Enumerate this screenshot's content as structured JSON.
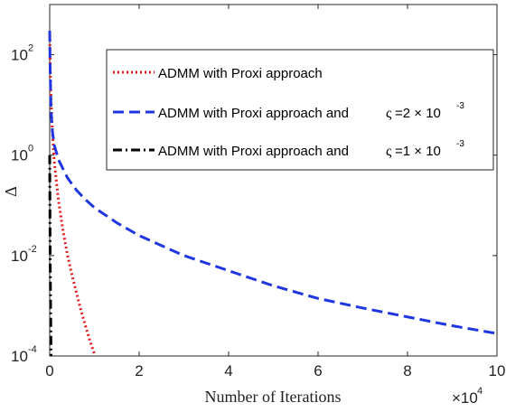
{
  "chart_data": {
    "type": "line",
    "xlabel": "Number of Iterations",
    "ylabel": "Δ",
    "x_scale_label": "×10",
    "x_scale_exp": "4",
    "xlim": [
      0,
      100000
    ],
    "ylim": [
      0.0001,
      1000
    ],
    "y_scale": "log",
    "grid": false,
    "legend_position": "top-right",
    "x_ticks": [
      {
        "value": 0,
        "label": "0"
      },
      {
        "value": 20000,
        "label": "2"
      },
      {
        "value": 40000,
        "label": "4"
      },
      {
        "value": 60000,
        "label": "6"
      },
      {
        "value": 80000,
        "label": "8"
      },
      {
        "value": 100000,
        "label": "10"
      }
    ],
    "y_ticks": [
      {
        "value": 0.0001,
        "base": "10",
        "exp": "-4"
      },
      {
        "value": 0.01,
        "base": "10",
        "exp": "-2"
      },
      {
        "value": 1,
        "base": "10",
        "exp": "0"
      },
      {
        "value": 100,
        "base": "10",
        "exp": "2"
      }
    ],
    "series": [
      {
        "name": "ADMM with Proxi approach",
        "color": "#e41a1c",
        "style": "dotted",
        "x": [
          0,
          100,
          300,
          600,
          1000,
          1500,
          2000,
          3000,
          4000,
          5000,
          6000,
          7000,
          8000,
          9000,
          10000
        ],
        "y": [
          300,
          60,
          12,
          3,
          0.8,
          0.3,
          0.12,
          0.03,
          0.01,
          0.004,
          0.0018,
          0.0008,
          0.0004,
          0.0002,
          0.00011
        ]
      },
      {
        "name": "ADMM with Proxi approach and",
        "name_symbol": "ς",
        "name_value": "=2 × 10",
        "name_exp": "-3",
        "color": "#1f36e0",
        "style": "dashed",
        "x": [
          0,
          100,
          300,
          600,
          1000,
          2000,
          4000,
          6000,
          8000,
          10000,
          15000,
          20000,
          30000,
          40000,
          50000,
          60000,
          70000,
          80000,
          90000,
          100000
        ],
        "y": [
          300,
          50,
          8,
          3,
          1.6,
          0.8,
          0.35,
          0.2,
          0.13,
          0.09,
          0.045,
          0.025,
          0.01,
          0.005,
          0.0025,
          0.0014,
          0.0009,
          0.0006,
          0.0004,
          0.00028
        ]
      },
      {
        "name": "ADMM with Proxi approach and",
        "name_symbol": "ς",
        "name_value": "=1 × 10",
        "name_exp": "-3",
        "color": "#000000",
        "style": "dashdot",
        "x": [
          0,
          50,
          100,
          150,
          200,
          250,
          300
        ],
        "y": [
          1,
          0.1,
          0.01,
          0.003,
          0.001,
          0.0003,
          0.0001
        ]
      }
    ]
  }
}
